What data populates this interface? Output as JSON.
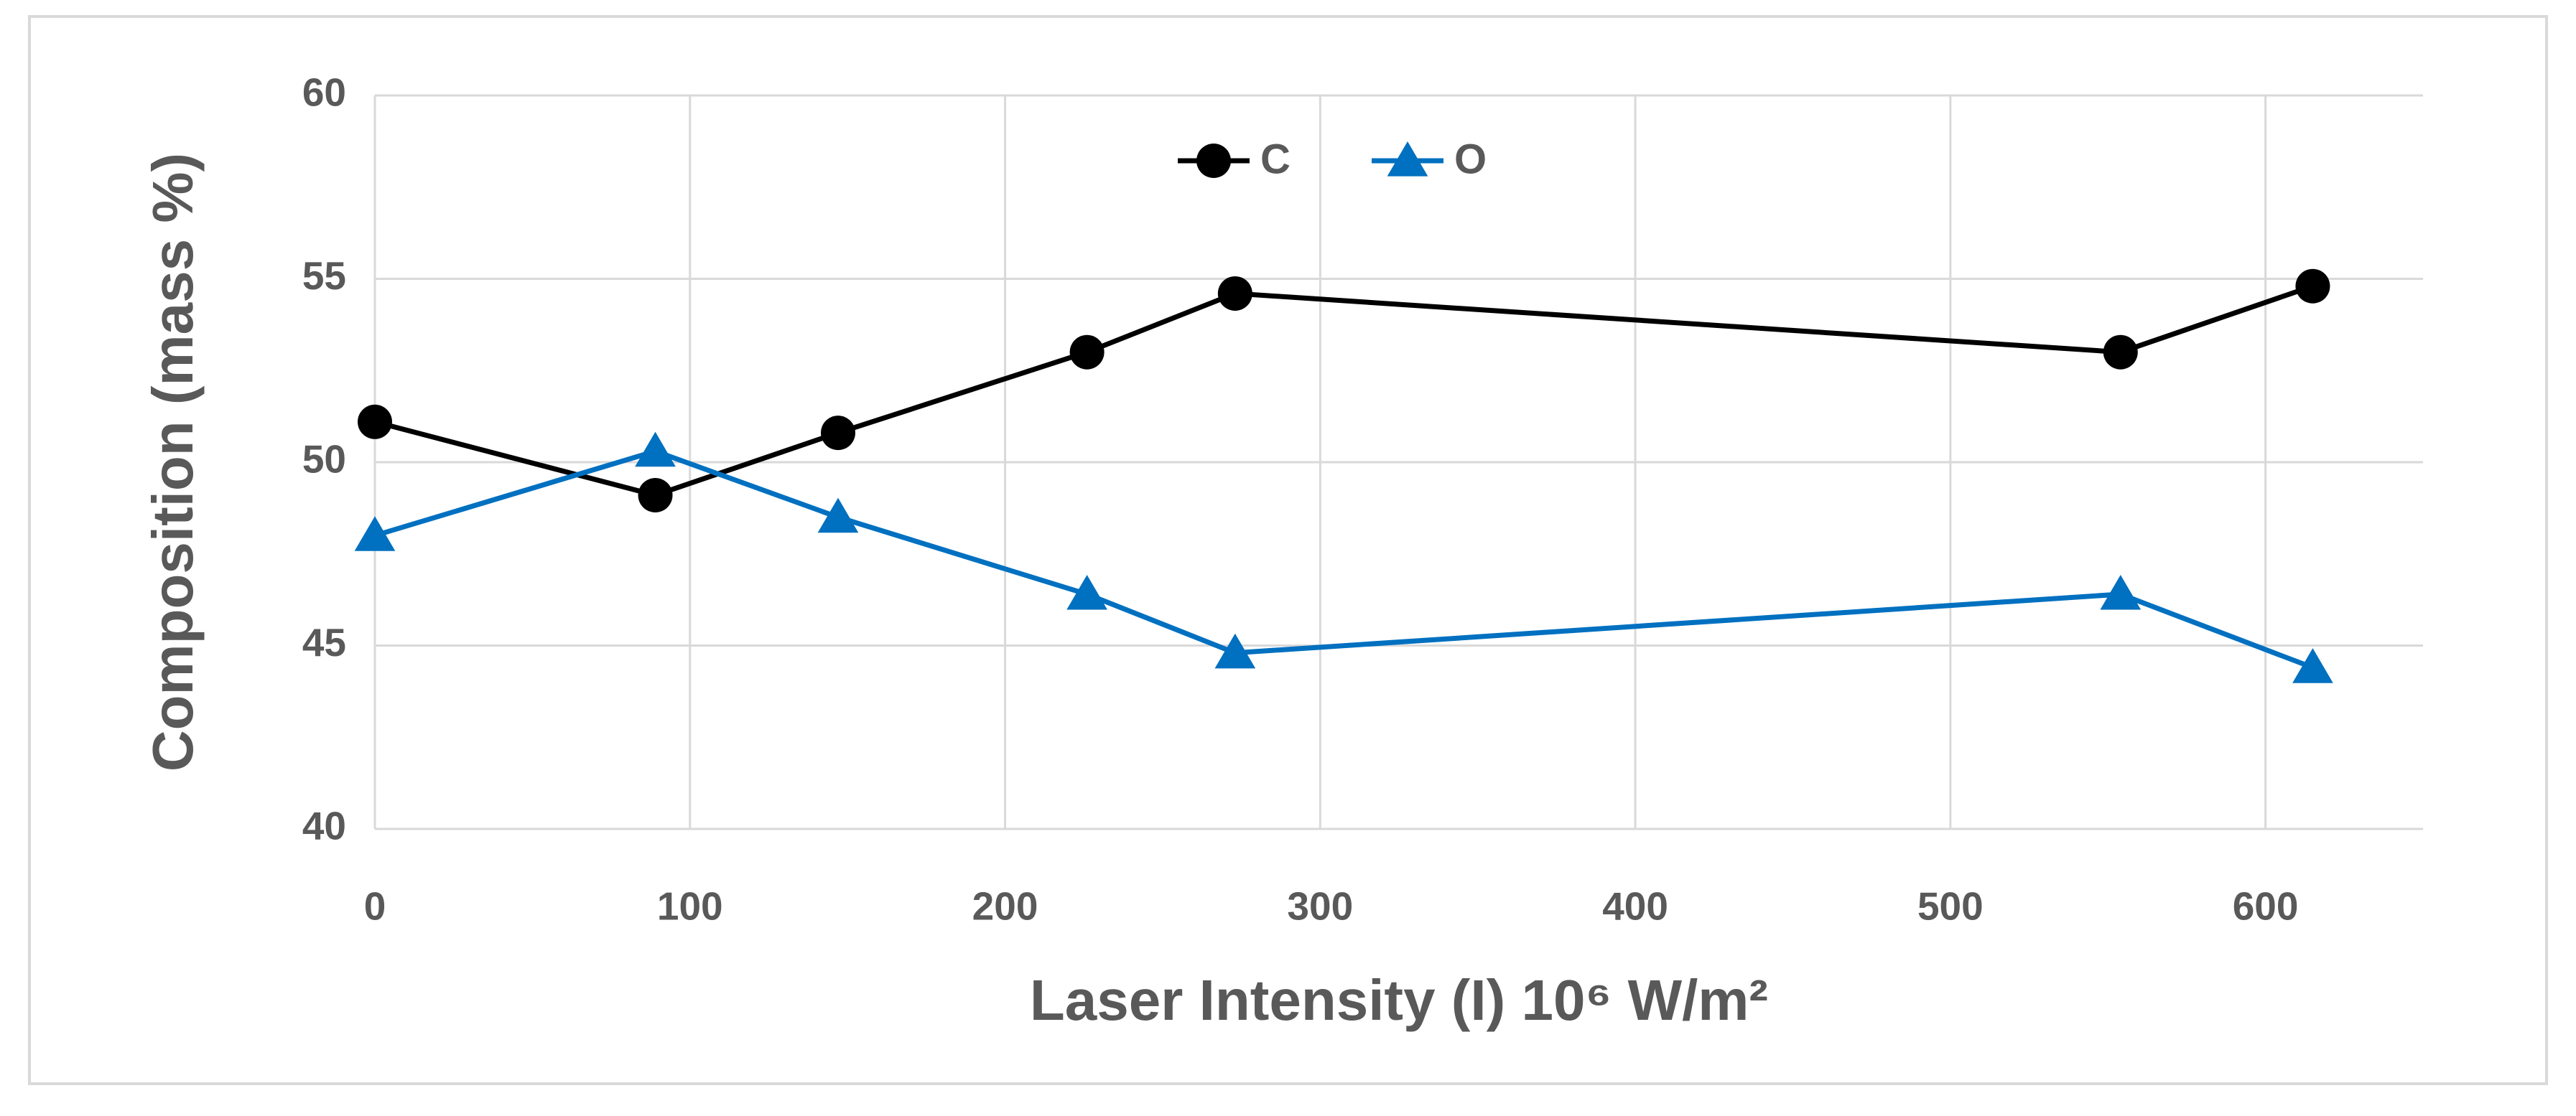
{
  "chart_data": {
    "type": "line",
    "x_label": "Laser Intensity (I) 10⁶ W/m²",
    "y_label": "Composition (mass %)",
    "x": [
      0,
      89,
      147,
      226,
      273,
      554,
      615
    ],
    "series": [
      {
        "name": "C",
        "color": "#000000",
        "marker": "circle",
        "values": [
          51.1,
          49.1,
          50.8,
          53.0,
          54.6,
          53.0,
          54.8
        ]
      },
      {
        "name": "O",
        "color": "#0070c0",
        "marker": "triangle",
        "values": [
          48.0,
          50.3,
          48.5,
          46.4,
          44.8,
          46.4,
          44.4
        ]
      }
    ],
    "xlim": [
      0,
      650
    ],
    "xticks": [
      0,
      100,
      200,
      300,
      400,
      500,
      600
    ],
    "ylim": [
      40,
      60
    ],
    "yticks": [
      40,
      45,
      50,
      55,
      60
    ],
    "grid": true,
    "legend": "top"
  }
}
